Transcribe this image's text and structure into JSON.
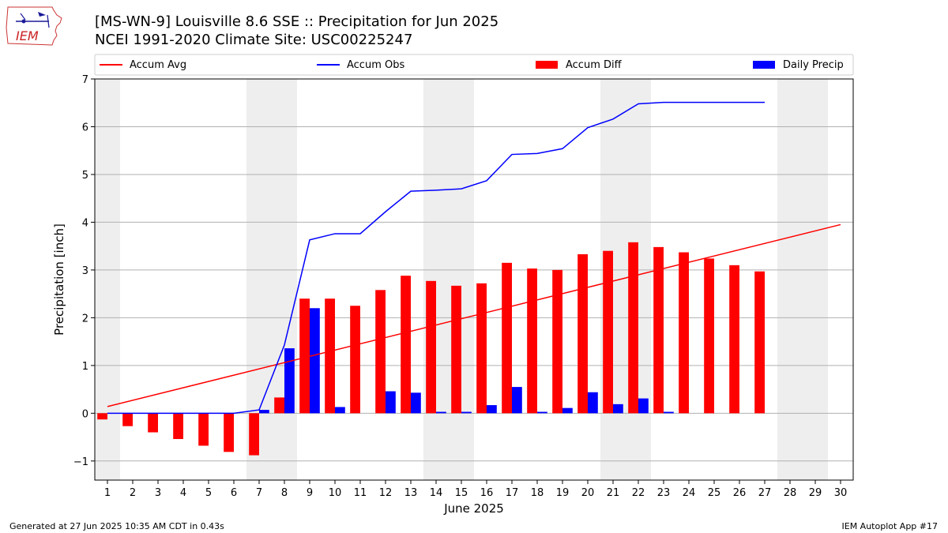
{
  "header": {
    "title_line1": "[MS-WN-9] Louisville 8.6 SSE :: Precipitation for Jun 2025",
    "title_line2": "NCEI 1991-2020 Climate Site: USC00225247",
    "logo_text": "IEM"
  },
  "footer": {
    "generated": "Generated at 27 Jun 2025 10:35 AM CDT in 0.43s",
    "app": "IEM Autoplot App #17"
  },
  "chart_data": {
    "type": "bar",
    "xlabel": "June 2025",
    "ylabel": "Precipitation [inch]",
    "ylim": [
      -1.4,
      7
    ],
    "xlim": [
      0.5,
      30.5
    ],
    "yticks": [
      -1,
      0,
      1,
      2,
      3,
      4,
      5,
      6,
      7
    ],
    "ytick_labels": [
      "−1",
      "0",
      "1",
      "2",
      "3",
      "4",
      "5",
      "6",
      "7"
    ],
    "days": [
      1,
      2,
      3,
      4,
      5,
      6,
      7,
      8,
      9,
      10,
      11,
      12,
      13,
      14,
      15,
      16,
      17,
      18,
      19,
      20,
      21,
      22,
      23,
      24,
      25,
      26,
      27,
      28,
      29,
      30
    ],
    "grid": "horizontal",
    "legend_position": "top, above plot",
    "weekend_shading": [
      [
        0.5,
        1.5
      ],
      [
        6.5,
        8.5
      ],
      [
        13.5,
        15.5
      ],
      [
        20.5,
        22.5
      ],
      [
        27.5,
        29.5
      ]
    ],
    "colors": {
      "accum_avg": "#ff0000",
      "accum_obs": "#0000ff",
      "accum_diff": "#ff0000",
      "daily_precip": "#0000ff",
      "weekend": "#eeeeee",
      "grid": "#b0b0b0"
    },
    "series": [
      {
        "name": "Accum Avg",
        "kind": "line",
        "x": [
          1,
          30
        ],
        "values": [
          0.14,
          3.95
        ]
      },
      {
        "name": "Accum Obs",
        "kind": "line",
        "values": [
          0.0,
          0.0,
          0.0,
          0.0,
          0.0,
          0.0,
          0.07,
          1.43,
          3.63,
          3.76,
          3.76,
          4.22,
          4.65,
          4.67,
          4.7,
          4.87,
          5.42,
          5.44,
          5.54,
          5.98,
          6.16,
          6.48,
          6.51,
          6.51,
          6.51,
          6.51,
          6.51
        ]
      },
      {
        "name": "Accum Diff",
        "kind": "bar",
        "values": [
          -0.13,
          -0.27,
          -0.4,
          -0.54,
          -0.68,
          -0.81,
          -0.88,
          0.33,
          2.4,
          2.4,
          2.25,
          2.58,
          2.88,
          2.77,
          2.67,
          2.72,
          3.15,
          3.03,
          3.0,
          3.33,
          3.4,
          3.58,
          3.48,
          3.37,
          3.24,
          3.1,
          2.97
        ]
      },
      {
        "name": "Daily Precip",
        "kind": "bar",
        "values": [
          0,
          0,
          0,
          0,
          0,
          0,
          0.07,
          1.36,
          2.2,
          0.13,
          0,
          0.46,
          0.43,
          0.03,
          0.03,
          0.17,
          0.55,
          0.03,
          0.11,
          0.44,
          0.19,
          0.31,
          0.03,
          0,
          0,
          0,
          0
        ]
      }
    ]
  }
}
